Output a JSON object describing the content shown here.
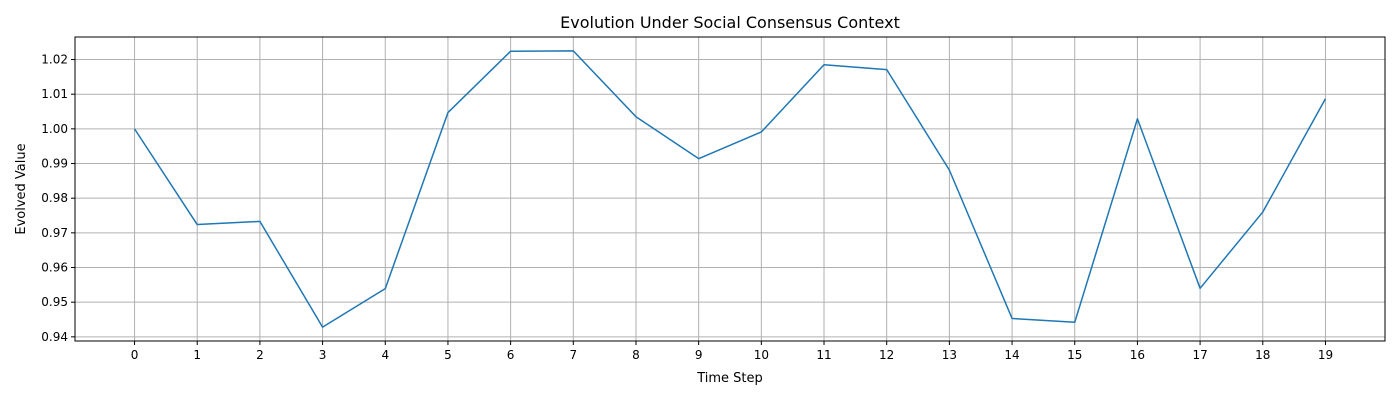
{
  "chart_data": {
    "type": "line",
    "title": "Evolution Under Social Consensus Context",
    "xlabel": "Time Step",
    "ylabel": "Evolved Value",
    "x": [
      0,
      1,
      2,
      3,
      4,
      5,
      6,
      7,
      8,
      9,
      10,
      11,
      12,
      13,
      14,
      15,
      16,
      17,
      18,
      19
    ],
    "series": [
      {
        "values": [
          1.0,
          0.9724,
          0.9733,
          0.9428,
          0.9539,
          1.0047,
          1.0224,
          1.0225,
          1.0035,
          0.9914,
          0.9991,
          1.0185,
          1.0171,
          0.9881,
          0.9453,
          0.9442,
          1.0029,
          0.954,
          0.976,
          1.0087
        ],
        "color": "#1f77b4"
      }
    ],
    "xticks": [
      "0",
      "1",
      "2",
      "3",
      "4",
      "5",
      "6",
      "7",
      "8",
      "9",
      "10",
      "11",
      "12",
      "13",
      "14",
      "15",
      "16",
      "17",
      "18",
      "19"
    ],
    "yticks": [
      "0.94",
      "0.95",
      "0.96",
      "0.97",
      "0.98",
      "0.99",
      "1.00",
      "1.01",
      "1.02"
    ],
    "xlim": [
      -0.95,
      19.95
    ],
    "ylim": [
      0.9388,
      1.0265
    ],
    "grid": true,
    "legend": "none"
  }
}
